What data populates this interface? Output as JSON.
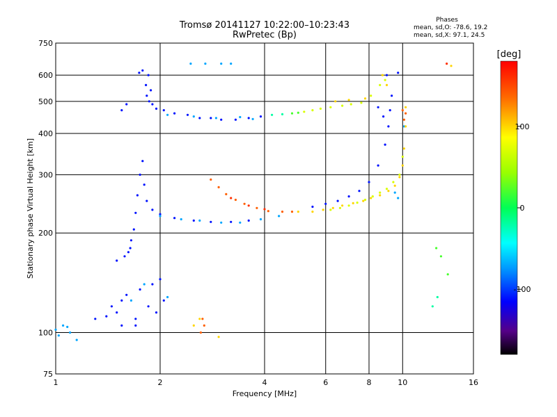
{
  "chart_data": {
    "type": "scatter",
    "title": "Tromsø 20141127 10:22:00–10:23:43",
    "subtitle": "RwPretec (Bp)",
    "stats": {
      "heading": "Phases",
      "o_line": "mean, sd,O: -78.6, 19.2",
      "x_line": "mean, sd,X:  97.1, 24.5"
    },
    "xlabel": "Frequency [MHz]",
    "ylabel": "Stationary phase Virtual Height [km]",
    "x_scale": "log",
    "y_scale": "log",
    "xlim": [
      1,
      16
    ],
    "ylim": [
      75,
      750
    ],
    "x_ticks": [
      1,
      2,
      4,
      6,
      8,
      10,
      16
    ],
    "x_tick_labels": [
      "1",
      "2",
      "4",
      "6",
      "8",
      "10",
      "16"
    ],
    "y_ticks": [
      75,
      100,
      200,
      300,
      400,
      500,
      600,
      750
    ],
    "y_tick_labels": [
      "75",
      "100",
      "200",
      "300",
      "400",
      "500",
      "600",
      "750"
    ],
    "grid": true,
    "colorbar": {
      "label": "[deg]",
      "min": -180,
      "max": 180,
      "ticks": [
        100,
        0,
        -100
      ],
      "tick_labels": [
        "100",
        "0",
        "-100"
      ]
    },
    "series": [
      {
        "color_deg": -110,
        "points": [
          [
            1.85,
            600
          ],
          [
            1.82,
            560
          ],
          [
            1.88,
            540
          ],
          [
            1.83,
            520
          ],
          [
            1.86,
            500
          ],
          [
            1.9,
            490
          ],
          [
            1.95,
            475
          ],
          [
            2.05,
            470
          ],
          [
            2.2,
            460
          ],
          [
            2.4,
            455
          ],
          [
            2.6,
            445
          ],
          [
            2.8,
            445
          ],
          [
            3.0,
            440
          ],
          [
            3.3,
            440
          ],
          [
            3.6,
            445
          ],
          [
            3.9,
            450
          ],
          [
            1.62,
            175
          ],
          [
            1.65,
            190
          ],
          [
            1.68,
            205
          ],
          [
            1.7,
            230
          ],
          [
            1.72,
            260
          ],
          [
            1.75,
            300
          ],
          [
            1.78,
            330
          ],
          [
            1.8,
            280
          ],
          [
            1.83,
            250
          ],
          [
            1.9,
            235
          ],
          [
            2.0,
            228
          ],
          [
            2.2,
            222
          ],
          [
            2.5,
            218
          ],
          [
            2.8,
            216
          ],
          [
            3.2,
            216
          ],
          [
            3.6,
            218
          ],
          [
            1.3,
            110
          ],
          [
            1.4,
            112
          ],
          [
            1.45,
            120
          ],
          [
            1.5,
            115
          ],
          [
            1.55,
            125
          ],
          [
            1.6,
            130
          ],
          [
            1.7,
            110
          ],
          [
            1.75,
            135
          ],
          [
            1.85,
            120
          ],
          [
            1.9,
            140
          ],
          [
            1.95,
            115
          ],
          [
            2.0,
            145
          ],
          [
            2.05,
            125
          ],
          [
            1.55,
            105
          ],
          [
            1.7,
            105
          ],
          [
            1.5,
            165
          ],
          [
            1.58,
            170
          ],
          [
            1.64,
            180
          ],
          [
            5.5,
            240
          ],
          [
            6.0,
            245
          ],
          [
            6.5,
            250
          ],
          [
            7.0,
            258
          ],
          [
            7.5,
            268
          ],
          [
            8.0,
            285
          ],
          [
            8.5,
            320
          ],
          [
            8.9,
            370
          ],
          [
            9.1,
            420
          ],
          [
            9.2,
            470
          ],
          [
            9.3,
            520
          ],
          [
            1.55,
            470
          ],
          [
            1.6,
            490
          ],
          [
            1.74,
            610
          ],
          [
            1.78,
            620
          ],
          [
            9.0,
            600
          ],
          [
            9.7,
            610
          ],
          [
            8.5,
            480
          ],
          [
            8.8,
            450
          ]
        ]
      },
      {
        "color_deg": -70,
        "points": [
          [
            2.5,
            450
          ],
          [
            2.9,
            445
          ],
          [
            3.4,
            448
          ],
          [
            3.7,
            442
          ],
          [
            2.1,
            455
          ],
          [
            2.0,
            225
          ],
          [
            2.3,
            220
          ],
          [
            2.6,
            218
          ],
          [
            3.0,
            215
          ],
          [
            3.4,
            215
          ],
          [
            3.9,
            220
          ],
          [
            4.4,
            225
          ],
          [
            1.0,
            102
          ],
          [
            1.05,
            105
          ],
          [
            1.1,
            100
          ],
          [
            1.15,
            95
          ],
          [
            1.02,
            98
          ],
          [
            1.08,
            104
          ],
          [
            2.45,
            650
          ],
          [
            2.7,
            650
          ],
          [
            3.0,
            650
          ],
          [
            3.2,
            650
          ],
          [
            1.8,
            140
          ],
          [
            1.65,
            125
          ],
          [
            2.1,
            128
          ],
          [
            9.5,
            265
          ],
          [
            9.7,
            255
          ],
          [
            10.1,
            420
          ]
        ]
      },
      {
        "color_deg": -20,
        "points": [
          [
            4.2,
            455
          ],
          [
            4.5,
            457
          ],
          [
            12.6,
            128
          ],
          [
            12.2,
            120
          ]
        ]
      },
      {
        "color_deg": 20,
        "points": [
          [
            4.8,
            460
          ],
          [
            5.0,
            462
          ],
          [
            13.5,
            150
          ],
          [
            12.9,
            170
          ],
          [
            12.5,
            180
          ]
        ]
      },
      {
        "color_deg": 70,
        "points": [
          [
            5.2,
            465
          ],
          [
            5.5,
            470
          ],
          [
            5.8,
            475
          ],
          [
            6.2,
            480
          ],
          [
            6.7,
            485
          ],
          [
            7.1,
            490
          ],
          [
            7.6,
            495
          ],
          [
            8.1,
            520
          ],
          [
            8.6,
            560
          ],
          [
            8.9,
            580
          ],
          [
            6.2,
            235
          ],
          [
            6.6,
            238
          ],
          [
            7.0,
            242
          ],
          [
            7.4,
            247
          ],
          [
            7.8,
            252
          ],
          [
            8.2,
            258
          ],
          [
            8.6,
            265
          ],
          [
            9.0,
            272
          ],
          [
            9.4,
            285
          ],
          [
            9.8,
            300
          ],
          [
            10.0,
            340
          ]
        ]
      },
      {
        "color_deg": 100,
        "points": [
          [
            5.0,
            232
          ],
          [
            5.5,
            232
          ],
          [
            5.9,
            235
          ],
          [
            6.3,
            238
          ],
          [
            6.7,
            242
          ],
          [
            7.2,
            246
          ],
          [
            7.7,
            250
          ],
          [
            8.1,
            255
          ],
          [
            8.6,
            260
          ],
          [
            9.1,
            268
          ],
          [
            9.5,
            278
          ],
          [
            9.8,
            295
          ],
          [
            10.0,
            320
          ],
          [
            10.1,
            360
          ],
          [
            10.2,
            420
          ],
          [
            10.2,
            480
          ],
          [
            2.5,
            105
          ],
          [
            2.6,
            110
          ],
          [
            2.95,
            97
          ],
          [
            13.8,
            640
          ],
          [
            8.75,
            600
          ],
          [
            9.0,
            560
          ],
          [
            6.4,
            500
          ],
          [
            7.0,
            505
          ],
          [
            7.8,
            510
          ]
        ]
      },
      {
        "color_deg": 140,
        "points": [
          [
            2.8,
            290
          ],
          [
            2.95,
            275
          ],
          [
            3.1,
            262
          ],
          [
            3.3,
            252
          ],
          [
            3.5,
            245
          ],
          [
            3.8,
            238
          ],
          [
            4.1,
            233
          ],
          [
            4.5,
            232
          ],
          [
            4.8,
            232
          ],
          [
            2.65,
            110
          ],
          [
            2.68,
            105
          ],
          [
            2.62,
            100
          ],
          [
            10.1,
            440
          ],
          [
            10.2,
            460
          ],
          [
            10.0,
            470
          ]
        ]
      },
      {
        "color_deg": 160,
        "points": [
          [
            3.2,
            255
          ],
          [
            3.6,
            242
          ],
          [
            4.0,
            236
          ],
          [
            13.4,
            650
          ]
        ]
      }
    ]
  }
}
